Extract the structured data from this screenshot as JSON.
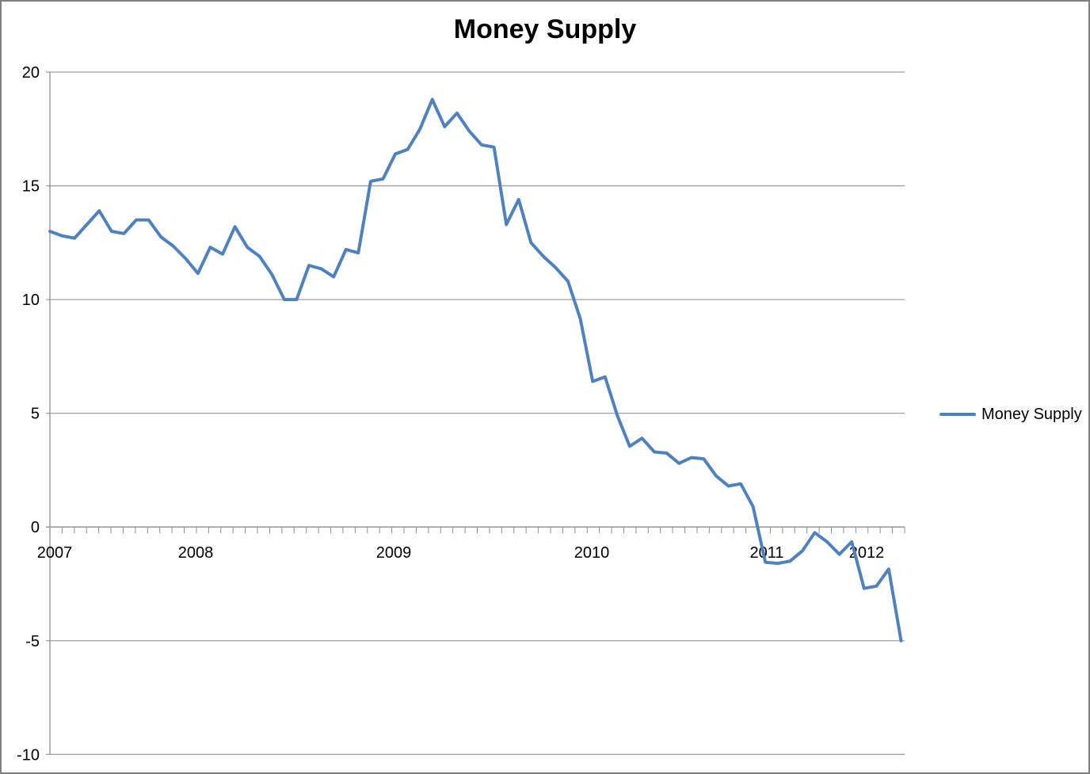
{
  "chart": {
    "title": "Money Supply",
    "legend": {
      "label": "Money Supply"
    },
    "colors": {
      "line": "#4F81BD",
      "gridline": "#A0A0A0",
      "axis": "#8C8C8C",
      "text": "#000000",
      "border": "#7F7F7F",
      "background": "#FFFFFF"
    }
  },
  "chart_data": {
    "type": "line",
    "title": "Money Supply",
    "x": [
      "2007-01",
      "2007-02",
      "2007-03",
      "2007-04",
      "2007-05",
      "2007-06",
      "2007-07",
      "2007-08",
      "2007-09",
      "2007-10",
      "2007-11",
      "2007-12",
      "2008-01",
      "2008-02",
      "2008-03",
      "2008-04",
      "2008-05",
      "2008-06",
      "2008-07",
      "2008-08",
      "2008-09",
      "2008-10",
      "2008-11",
      "2008-12",
      "2009-01",
      "2009-02",
      "2009-03",
      "2009-04",
      "2009-05",
      "2009-06",
      "2009-07",
      "2009-08",
      "2009-09",
      "2009-10",
      "2009-11",
      "2009-12",
      "2010-01",
      "2010-02",
      "2010-03",
      "2010-04",
      "2010-05",
      "2010-06",
      "2010-07",
      "2010-08",
      "2010-09",
      "2010-10",
      "2010-11",
      "2010-12",
      "2011-01",
      "2011-02",
      "2011-03",
      "2011-04",
      "2011-05",
      "2011-06",
      "2011-07",
      "2011-08",
      "2011-09",
      "2011-10",
      "2011-11",
      "2011-12",
      "2012-01",
      "2012-02",
      "2012-03",
      "2012-04",
      "2012-05",
      "2012-06",
      "2012-07",
      "2012-08",
      "2012-09",
      "2012-10"
    ],
    "series": [
      {
        "name": "Money Supply",
        "values": [
          13.0,
          12.8,
          12.7,
          13.3,
          13.9,
          13.0,
          12.9,
          13.5,
          13.5,
          12.75,
          12.35,
          11.8,
          11.15,
          12.3,
          12.0,
          13.2,
          12.3,
          11.9,
          11.1,
          10.0,
          10.0,
          11.5,
          11.35,
          11.0,
          12.2,
          12.05,
          15.2,
          15.3,
          16.4,
          16.6,
          17.5,
          18.8,
          17.6,
          18.2,
          17.4,
          16.8,
          16.7,
          13.3,
          14.4,
          12.5,
          11.9,
          11.4,
          10.8,
          9.15,
          6.4,
          6.6,
          4.9,
          3.55,
          3.9,
          3.3,
          3.25,
          2.8,
          3.05,
          3.0,
          2.25,
          1.8,
          1.9,
          0.9,
          -1.55,
          -1.6,
          -1.5,
          -1.05,
          -0.25,
          -0.65,
          -1.2,
          -0.65,
          -2.7,
          -2.6,
          -1.85,
          -5.0
        ]
      }
    ],
    "xticklabels": [
      "2007",
      "2008",
      "2009",
      "2010",
      "2011",
      "2012"
    ],
    "yticks": [
      20,
      15,
      10,
      5,
      0,
      -5,
      -10
    ],
    "ylim": [
      -10,
      20
    ],
    "grid": true,
    "legend_position": "right"
  }
}
